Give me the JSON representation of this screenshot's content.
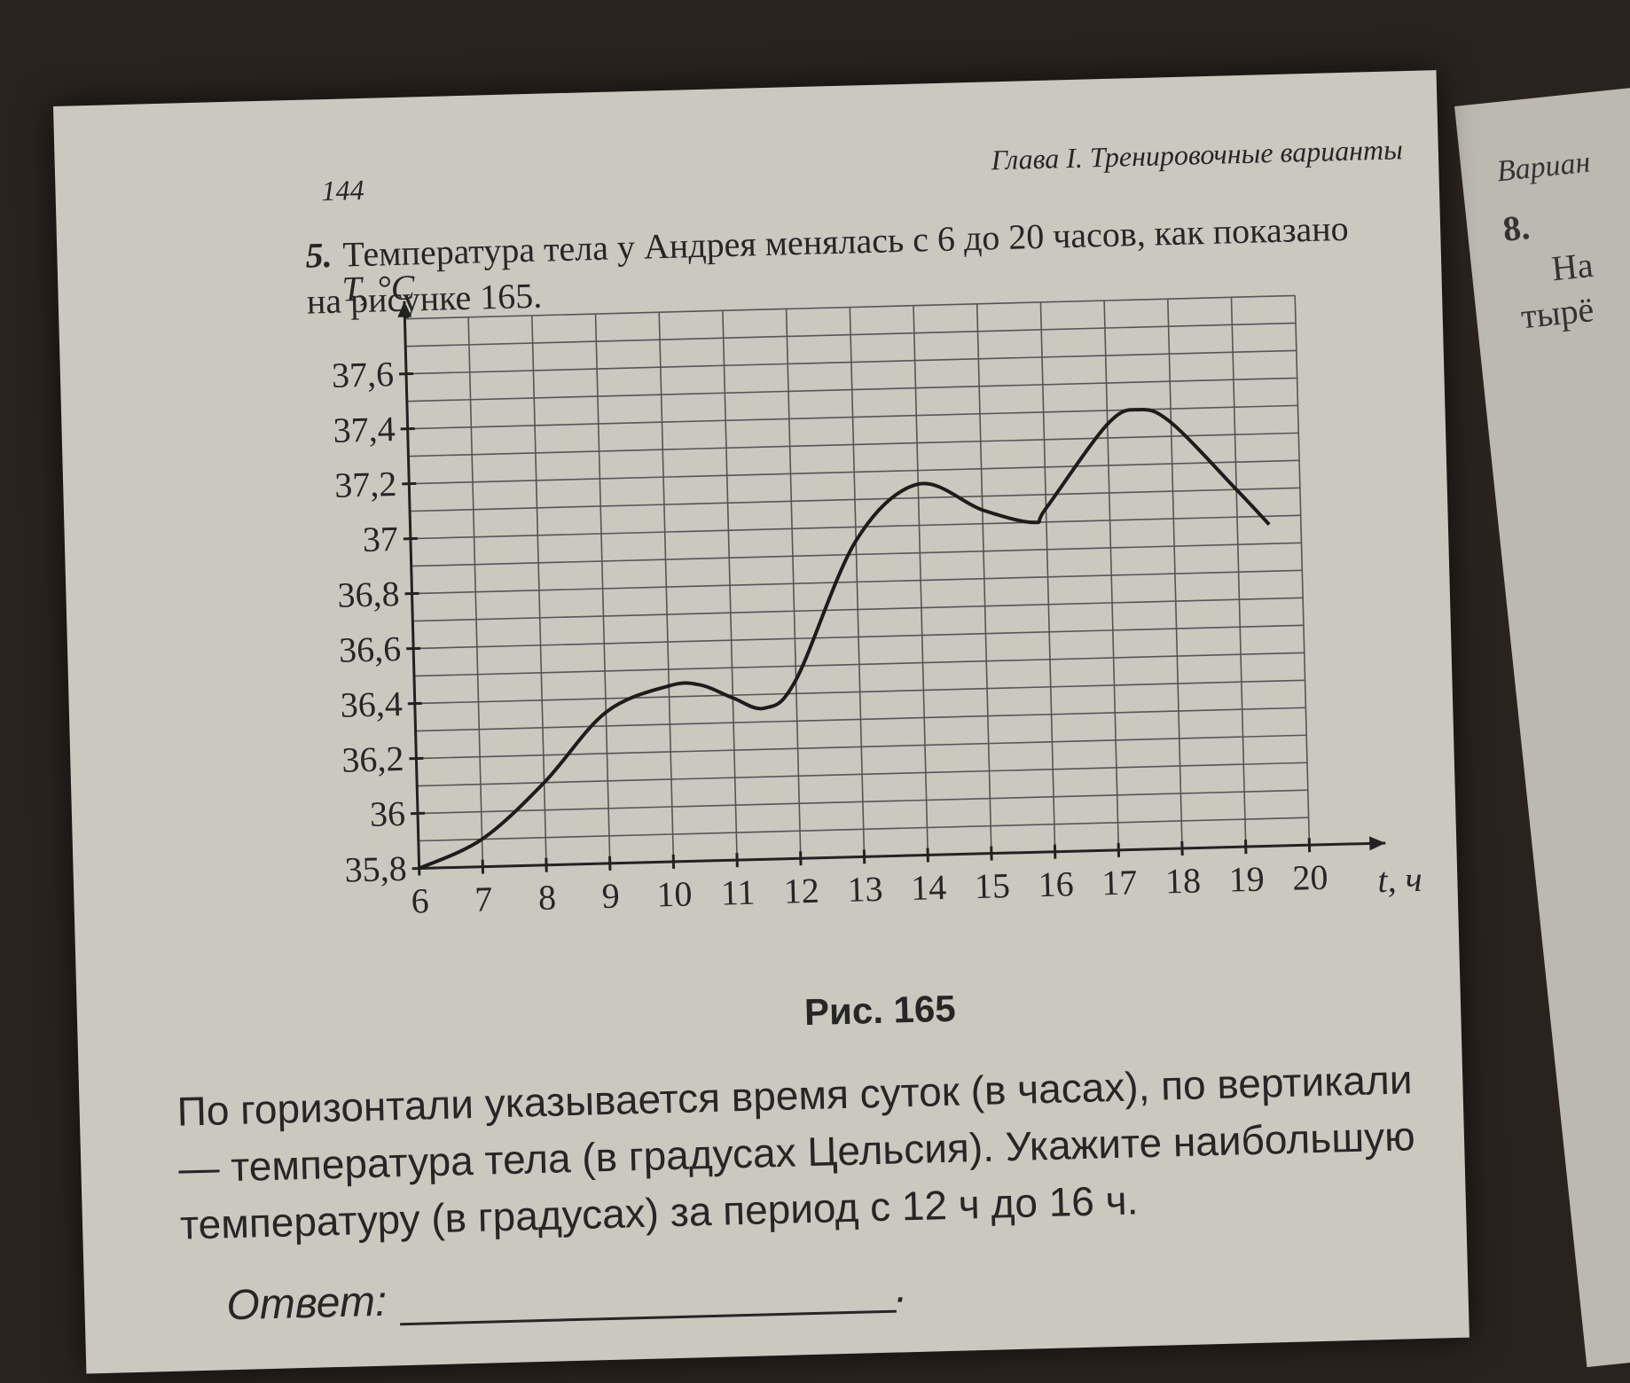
{
  "page": {
    "number": "144",
    "running_head": "Глава I. Тренировочные варианты",
    "problem_number": "5.",
    "problem_text": "Температура тела у Андрея менялась с 6 до 20 часов, как показано на рисунке 165.",
    "figure_caption": "Рис. 165",
    "body_text": "По горизонтали указывается время суток (в часах), по вертикали — температура тела (в градусах Цельсия). Укажите наибольшую температуру (в градусах) за период с 12 ч до 16 ч.",
    "answer_label": "Ответ:",
    "answer_dot": "."
  },
  "next_page": {
    "header": "Вариан",
    "item_number": "8.",
    "item_text": "На",
    "item_text2": "тырё"
  },
  "chart_data": {
    "type": "line",
    "xlabel": "t, ч",
    "ylabel": "T, °C",
    "xlim": [
      6,
      20.5
    ],
    "ylim": [
      35.8,
      37.8
    ],
    "x_ticks": [
      "6",
      "7",
      "8",
      "9",
      "10",
      "11",
      "12",
      "13",
      "14",
      "15",
      "16",
      "17",
      "18",
      "19",
      "20"
    ],
    "y_ticks": [
      "35,8",
      "36",
      "36,2",
      "36,4",
      "36,6",
      "36,8",
      "37",
      "37,2",
      "37,4",
      "37,6"
    ],
    "grid": true,
    "series": [
      {
        "x": [
          6,
          7,
          8,
          9,
          10,
          10.5,
          11,
          11.5,
          12,
          13,
          14,
          15,
          15.8,
          16,
          17,
          17.5,
          18,
          19,
          19.5
        ],
        "y": [
          35.8,
          35.9,
          36.1,
          36.35,
          36.44,
          36.44,
          36.39,
          36.35,
          36.45,
          36.95,
          37.15,
          37.05,
          37.0,
          37.05,
          37.35,
          37.4,
          37.35,
          37.1,
          36.97
        ]
      }
    ]
  }
}
